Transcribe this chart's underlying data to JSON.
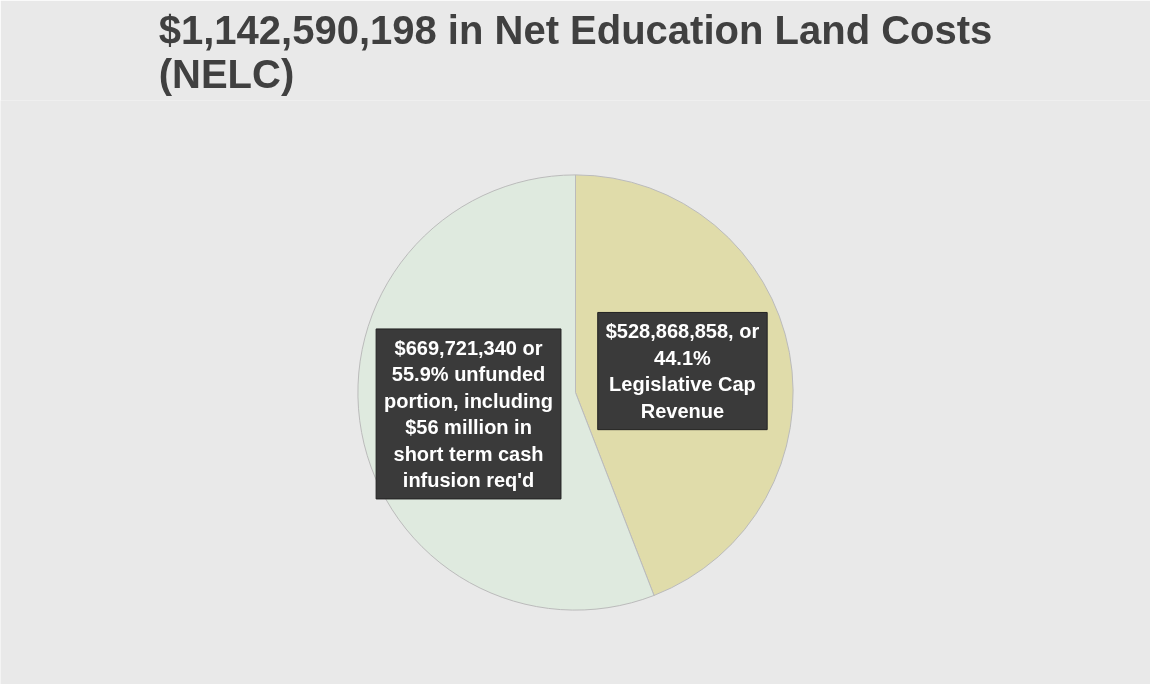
{
  "chart_data": {
    "type": "pie",
    "title": "$1,142,590,198 in Net Education Land Costs\n(NELC)",
    "categories": [
      null,
      null
    ],
    "values": [
      528868858,
      669721340
    ],
    "colors": [
      "#e0dcaa",
      "#dfeadf"
    ],
    "value_labels": [
      "$528,868,858, or\n44.1%\nLegislative Cap\nRevenue",
      "$669,721,340 or\n55.9% unfunded\nportion, including\n$56 million in\nshort term cash\ninfusion req'd"
    ]
  }
}
